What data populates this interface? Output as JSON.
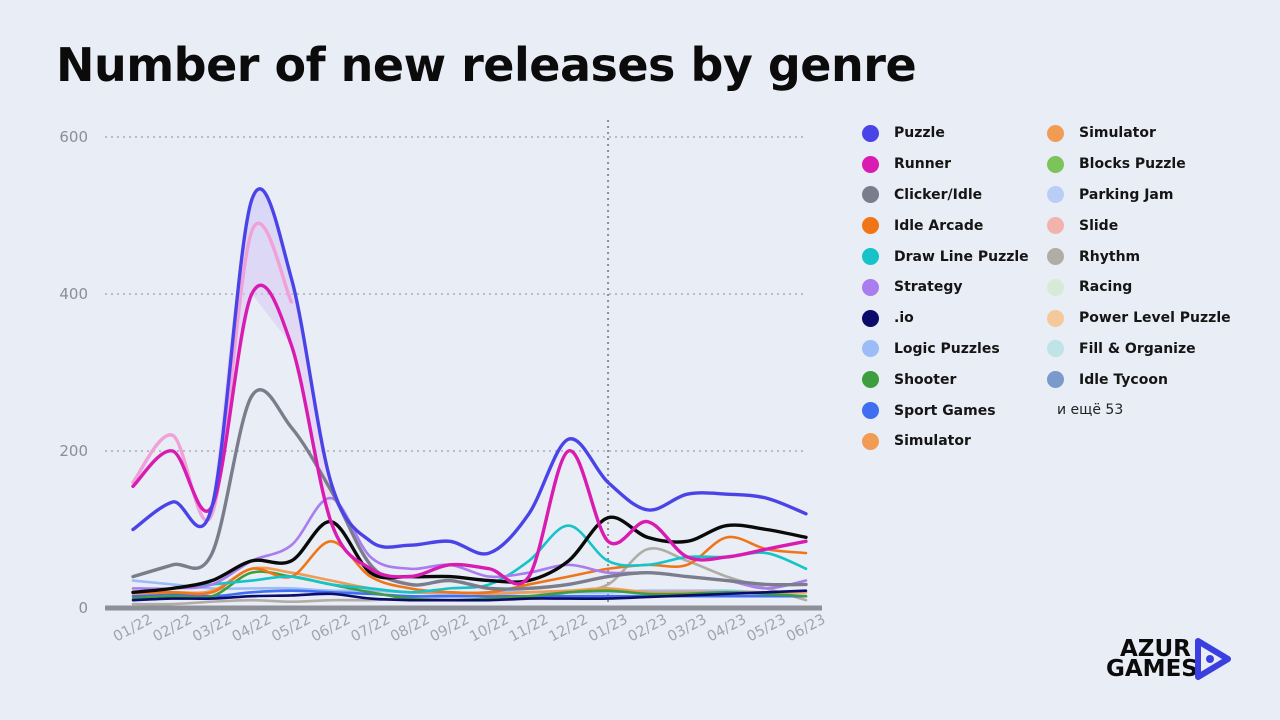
{
  "chart_data": {
    "type": "line",
    "title": "Number of new releases by genre",
    "categories": [
      "01/22",
      "02/22",
      "03/22",
      "04/22",
      "05/22",
      "06/22",
      "07/22",
      "08/22",
      "09/22",
      "10/22",
      "11/22",
      "12/22",
      "01/23",
      "02/23",
      "03/23",
      "04/23",
      "05/23",
      "06/23"
    ],
    "ylim": [
      0,
      600
    ],
    "yticks": [
      0,
      200,
      400,
      600
    ],
    "grid": true,
    "divider_at_category": "01/23",
    "series": [
      {
        "name": "Puzzle",
        "color": "#4a44e8",
        "values": [
          100,
          135,
          130,
          520,
          420,
          160,
          85,
          80,
          85,
          70,
          120,
          215,
          160,
          125,
          145,
          145,
          140,
          120
        ]
      },
      {
        "name": "Runner",
        "color": "#d81cb1",
        "values": [
          155,
          200,
          130,
          400,
          335,
          110,
          50,
          40,
          55,
          50,
          40,
          200,
          85,
          110,
          65,
          65,
          75,
          85
        ]
      },
      {
        "name": "Clicker/Idle",
        "color": "#7b7d8c",
        "values": [
          40,
          55,
          70,
          270,
          230,
          150,
          55,
          30,
          35,
          25,
          25,
          30,
          40,
          45,
          40,
          35,
          30,
          30
        ]
      },
      {
        "name": "Idle Arcade",
        "color": "#f07517",
        "values": [
          20,
          20,
          20,
          50,
          40,
          85,
          40,
          25,
          20,
          20,
          30,
          40,
          50,
          55,
          55,
          90,
          75,
          70
        ]
      },
      {
        "name": "Draw Line Puzzle",
        "color": "#15c3c9",
        "values": [
          20,
          25,
          30,
          35,
          40,
          30,
          25,
          20,
          25,
          30,
          60,
          105,
          60,
          55,
          65,
          65,
          70,
          50
        ]
      },
      {
        "name": "Strategy",
        "color": "#a97cef",
        "values": [
          25,
          25,
          30,
          60,
          80,
          140,
          65,
          50,
          55,
          40,
          45,
          55,
          45,
          45,
          40,
          35,
          25,
          35
        ]
      },
      {
        "name": ".io",
        "color": "#0b0b6b",
        "values": [
          10,
          12,
          12,
          15,
          16,
          18,
          12,
          10,
          10,
          10,
          12,
          12,
          12,
          14,
          16,
          18,
          20,
          22
        ]
      },
      {
        "name": "Logic Puzzles",
        "color": "#9bbcf7",
        "values": [
          35,
          30,
          25,
          25,
          25,
          22,
          22,
          20,
          18,
          20,
          20,
          20,
          20,
          22,
          22,
          22,
          20,
          20
        ]
      },
      {
        "name": "Shooter",
        "color": "#3d9e3f",
        "values": [
          12,
          15,
          15,
          45,
          40,
          30,
          20,
          12,
          10,
          12,
          15,
          20,
          22,
          18,
          18,
          20,
          18,
          15
        ]
      },
      {
        "name": "Sport Games",
        "color": "#3f6ef0",
        "values": [
          15,
          18,
          15,
          20,
          22,
          20,
          18,
          15,
          15,
          15,
          15,
          15,
          15,
          15,
          15,
          15,
          15,
          15
        ]
      },
      {
        "name": "Simulator",
        "color": "#f29b53",
        "values": [
          18,
          20,
          22,
          50,
          45,
          35,
          25,
          20,
          20,
          18,
          20,
          22,
          25,
          20,
          20,
          20,
          20,
          20
        ]
      },
      {
        "name": "Rhythm",
        "color": "#b0ada6",
        "values": [
          5,
          5,
          8,
          10,
          8,
          10,
          10,
          12,
          10,
          10,
          12,
          20,
          30,
          75,
          60,
          40,
          25,
          10
        ]
      },
      {
        "name": "",
        "color": "#efa1d8",
        "values": [
          160,
          220,
          120,
          480,
          390,
          0,
          0,
          0,
          0,
          0,
          0,
          0,
          0,
          0,
          0,
          0,
          0,
          0
        ]
      },
      {
        "name": "",
        "color": "#0a0a0a",
        "values": [
          20,
          25,
          35,
          60,
          60,
          110,
          45,
          40,
          40,
          35,
          35,
          60,
          115,
          90,
          85,
          105,
          100,
          90
        ]
      }
    ]
  },
  "legend": {
    "col1": [
      {
        "label": "Puzzle",
        "color": "#4a44e8"
      },
      {
        "label": "Runner",
        "color": "#d81cb1"
      },
      {
        "label": "Clicker/Idle",
        "color": "#7b7d8c"
      },
      {
        "label": "Idle Arcade",
        "color": "#f07517"
      },
      {
        "label": "Draw Line Puzzle",
        "color": "#15c3c9"
      },
      {
        "label": "Strategy",
        "color": "#a97cef"
      },
      {
        "label": ".io",
        "color": "#0b0b6b"
      },
      {
        "label": "Logic Puzzles",
        "color": "#9bbcf7"
      },
      {
        "label": "Shooter",
        "color": "#3d9e3f"
      },
      {
        "label": "Sport Games",
        "color": "#3f6ef0"
      },
      {
        "label": "Simulator",
        "color": "#f29b53"
      }
    ],
    "col2": [
      {
        "label": "Simulator",
        "color": "#f29b53"
      },
      {
        "label": "Blocks Puzzle",
        "color": "#7cc35a"
      },
      {
        "label": "Parking Jam",
        "color": "#b9cdf6"
      },
      {
        "label": "Slide",
        "color": "#f2b3ad"
      },
      {
        "label": "Rhythm",
        "color": "#b0ada6"
      },
      {
        "label": "Racing",
        "color": "#d6ebd6"
      },
      {
        "label": "Power Level Puzzle",
        "color": "#f3c99a"
      },
      {
        "label": "Fill & Organize",
        "color": "#bfe3e6"
      },
      {
        "label": "Idle Tycoon",
        "color": "#7b9acb"
      }
    ],
    "more": "и ещё 53"
  },
  "logo": {
    "line1": "AZUR",
    "line2": "GAMES",
    "accent": "#3b3fe0"
  }
}
